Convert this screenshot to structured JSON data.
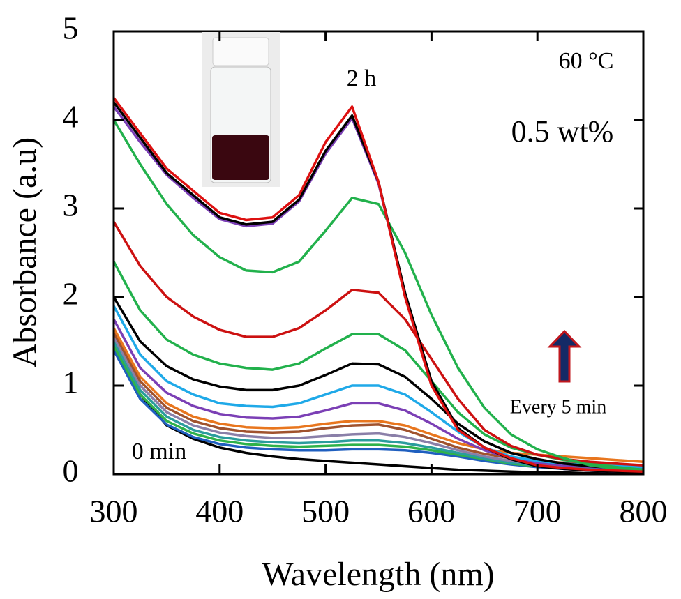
{
  "chart_data": {
    "type": "line",
    "x_label": "Wavelength (nm)",
    "y_label": "Absorbance (a.u)",
    "annotations": [
      "2 h",
      "0 min",
      "60 °C",
      "0.5 wt%",
      "Every 5 min"
    ],
    "x": [
      300,
      325,
      350,
      375,
      400,
      425,
      450,
      475,
      500,
      525,
      550,
      575,
      600,
      625,
      650,
      675,
      700,
      725,
      750,
      775,
      800
    ],
    "series": [
      {
        "color": "#000000",
        "values": [
          1.5,
          0.9,
          0.55,
          0.4,
          0.3,
          0.24,
          0.2,
          0.17,
          0.15,
          0.13,
          0.11,
          0.09,
          0.07,
          0.05,
          0.04,
          0.03,
          0.02,
          0.02,
          0.01,
          0.01,
          0.01
        ]
      },
      {
        "color": "#1f5fbf",
        "values": [
          1.4,
          0.85,
          0.56,
          0.42,
          0.34,
          0.3,
          0.28,
          0.27,
          0.27,
          0.28,
          0.28,
          0.27,
          0.24,
          0.2,
          0.15,
          0.11,
          0.08,
          0.06,
          0.05,
          0.04,
          0.03
        ]
      },
      {
        "color": "#2fb24a",
        "values": [
          1.45,
          0.9,
          0.6,
          0.46,
          0.38,
          0.34,
          0.32,
          0.31,
          0.32,
          0.33,
          0.33,
          0.31,
          0.27,
          0.22,
          0.17,
          0.12,
          0.09,
          0.07,
          0.06,
          0.05,
          0.04
        ]
      },
      {
        "color": "#2a9d9d",
        "values": [
          1.5,
          0.95,
          0.65,
          0.5,
          0.42,
          0.38,
          0.36,
          0.35,
          0.36,
          0.38,
          0.38,
          0.35,
          0.3,
          0.24,
          0.18,
          0.13,
          0.1,
          0.08,
          0.07,
          0.06,
          0.05
        ]
      },
      {
        "color": "#8a7fa8",
        "values": [
          1.55,
          1.0,
          0.7,
          0.55,
          0.47,
          0.43,
          0.41,
          0.41,
          0.43,
          0.45,
          0.46,
          0.42,
          0.35,
          0.27,
          0.2,
          0.15,
          0.12,
          0.1,
          0.09,
          0.08,
          0.07
        ]
      },
      {
        "color": "#a0522d",
        "values": [
          1.6,
          1.05,
          0.75,
          0.6,
          0.52,
          0.48,
          0.47,
          0.48,
          0.52,
          0.55,
          0.56,
          0.5,
          0.4,
          0.3,
          0.23,
          0.18,
          0.15,
          0.13,
          0.12,
          0.11,
          0.1
        ]
      },
      {
        "color": "#e8761e",
        "values": [
          1.65,
          1.1,
          0.8,
          0.65,
          0.57,
          0.53,
          0.52,
          0.53,
          0.57,
          0.6,
          0.6,
          0.55,
          0.45,
          0.35,
          0.28,
          0.24,
          0.22,
          0.2,
          0.18,
          0.16,
          0.14
        ]
      },
      {
        "color": "#7b3fb5",
        "values": [
          1.75,
          1.2,
          0.92,
          0.77,
          0.68,
          0.64,
          0.63,
          0.65,
          0.72,
          0.8,
          0.8,
          0.72,
          0.57,
          0.4,
          0.27,
          0.18,
          0.13,
          0.1,
          0.08,
          0.07,
          0.06
        ]
      },
      {
        "color": "#1fa9e8",
        "values": [
          1.9,
          1.35,
          1.05,
          0.9,
          0.8,
          0.77,
          0.76,
          0.8,
          0.9,
          1.0,
          1.0,
          0.9,
          0.7,
          0.48,
          0.3,
          0.2,
          0.15,
          0.12,
          0.1,
          0.09,
          0.08
        ]
      },
      {
        "color": "#000000",
        "values": [
          2.0,
          1.5,
          1.22,
          1.07,
          0.99,
          0.95,
          0.95,
          1.0,
          1.12,
          1.25,
          1.24,
          1.1,
          0.85,
          0.57,
          0.37,
          0.24,
          0.17,
          0.12,
          0.09,
          0.07,
          0.05
        ]
      },
      {
        "color": "#22b14c",
        "values": [
          2.4,
          1.85,
          1.52,
          1.35,
          1.25,
          1.2,
          1.18,
          1.25,
          1.42,
          1.58,
          1.58,
          1.4,
          1.05,
          0.7,
          0.45,
          0.3,
          0.22,
          0.16,
          0.12,
          0.08,
          0.05
        ]
      },
      {
        "color": "#cc1111",
        "values": [
          2.85,
          2.35,
          2.0,
          1.78,
          1.63,
          1.55,
          1.55,
          1.65,
          1.85,
          2.08,
          2.05,
          1.75,
          1.3,
          0.85,
          0.5,
          0.32,
          0.22,
          0.17,
          0.14,
          0.12,
          0.1
        ]
      },
      {
        "color": "#22b14c",
        "values": [
          4.0,
          3.5,
          3.05,
          2.7,
          2.45,
          2.3,
          2.28,
          2.4,
          2.75,
          3.12,
          3.05,
          2.5,
          1.8,
          1.2,
          0.75,
          0.45,
          0.28,
          0.18,
          0.1,
          0.06,
          0.03
        ]
      },
      {
        "color": "#7b3fb5",
        "values": [
          4.15,
          3.75,
          3.38,
          3.12,
          2.88,
          2.8,
          2.83,
          3.08,
          3.62,
          4.02,
          3.28,
          2.03,
          1.04,
          0.52,
          0.3,
          0.17,
          0.09,
          0.06,
          0.04,
          0.03,
          0.02
        ]
      },
      {
        "color": "#000000",
        "values": [
          4.2,
          3.8,
          3.4,
          3.15,
          2.9,
          2.82,
          2.85,
          3.1,
          3.65,
          4.05,
          3.3,
          2.05,
          1.05,
          0.52,
          0.3,
          0.17,
          0.09,
          0.06,
          0.04,
          0.03,
          0.02
        ]
      },
      {
        "color": "#dd1111",
        "values": [
          4.25,
          3.85,
          3.45,
          3.2,
          2.95,
          2.87,
          2.9,
          3.15,
          3.75,
          4.15,
          3.3,
          2.0,
          1.0,
          0.5,
          0.3,
          0.18,
          0.1,
          0.07,
          0.05,
          0.04,
          0.03
        ]
      }
    ],
    "xlim": [
      300,
      800
    ],
    "ylim": [
      0,
      5
    ],
    "xticks": [
      300,
      400,
      500,
      600,
      700,
      800
    ],
    "yticks": [
      0,
      1,
      2,
      3,
      4,
      5
    ]
  }
}
